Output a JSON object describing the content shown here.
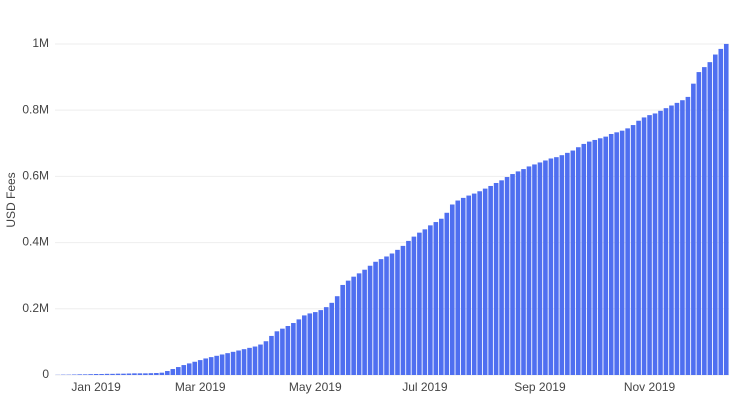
{
  "chart_data": {
    "type": "bar",
    "y_label": "USD Fees",
    "color": "#4f6ff0",
    "categories": [
      null,
      null,
      null,
      null,
      null,
      null,
      null,
      "Jan 2019",
      null,
      null,
      null,
      null,
      null,
      null,
      null,
      null,
      null,
      null,
      null,
      null,
      null,
      null,
      null,
      null,
      null,
      null,
      "Mar 2019",
      null,
      null,
      null,
      null,
      null,
      null,
      null,
      null,
      null,
      null,
      null,
      null,
      null,
      null,
      null,
      null,
      null,
      null,
      null,
      null,
      "May 2019",
      null,
      null,
      null,
      null,
      null,
      null,
      null,
      null,
      null,
      null,
      null,
      null,
      null,
      null,
      null,
      null,
      null,
      null,
      null,
      "Jul 2019",
      null,
      null,
      null,
      null,
      null,
      null,
      null,
      null,
      null,
      null,
      null,
      null,
      null,
      null,
      null,
      null,
      null,
      null,
      null,
      null,
      "Sep 2019",
      null,
      null,
      null,
      null,
      null,
      null,
      null,
      null,
      null,
      null,
      null,
      null,
      null,
      null,
      null,
      null,
      null,
      null,
      null,
      "Nov 2019",
      null,
      null,
      null,
      null,
      null,
      null,
      null,
      null,
      null,
      null,
      null,
      null,
      null,
      null
    ],
    "values": [
      500,
      1000,
      1000,
      1500,
      2000,
      2000,
      2500,
      3000,
      3000,
      3500,
      3500,
      4000,
      4000,
      4500,
      5000,
      5000,
      5000,
      5500,
      6000,
      7000,
      12000,
      18000,
      24000,
      30000,
      35000,
      40000,
      45000,
      50000,
      54000,
      58000,
      62000,
      66000,
      70000,
      74000,
      78000,
      82000,
      86000,
      92000,
      102000,
      118000,
      132000,
      140000,
      148000,
      157000,
      168000,
      180000,
      186000,
      190000,
      196000,
      205000,
      218000,
      238000,
      272000,
      285000,
      297000,
      307000,
      318000,
      330000,
      342000,
      350000,
      358000,
      367000,
      378000,
      390000,
      405000,
      418000,
      430000,
      440000,
      452000,
      462000,
      472000,
      490000,
      515000,
      527000,
      535000,
      542000,
      548000,
      555000,
      563000,
      571000,
      580000,
      588000,
      598000,
      607000,
      615000,
      622000,
      630000,
      636000,
      642000,
      648000,
      654000,
      658000,
      664000,
      671000,
      678000,
      688000,
      698000,
      705000,
      710000,
      715000,
      720000,
      728000,
      733000,
      738000,
      745000,
      755000,
      768000,
      778000,
      785000,
      790000,
      798000,
      806000,
      814000,
      822000,
      830000,
      840000,
      880000,
      915000,
      930000,
      945000,
      968000,
      985000,
      1000000
    ],
    "ylim": [
      0,
      1027000
    ],
    "yticks": [
      0,
      {
        "value": 200000,
        "label": "0.2M"
      },
      {
        "value": 400000,
        "label": "0.4M"
      },
      {
        "value": 600000,
        "label": "0.6M"
      },
      {
        "value": 800000,
        "label": "0.8M"
      },
      {
        "value": 1000000,
        "label": "1M"
      }
    ],
    "grid": true
  }
}
